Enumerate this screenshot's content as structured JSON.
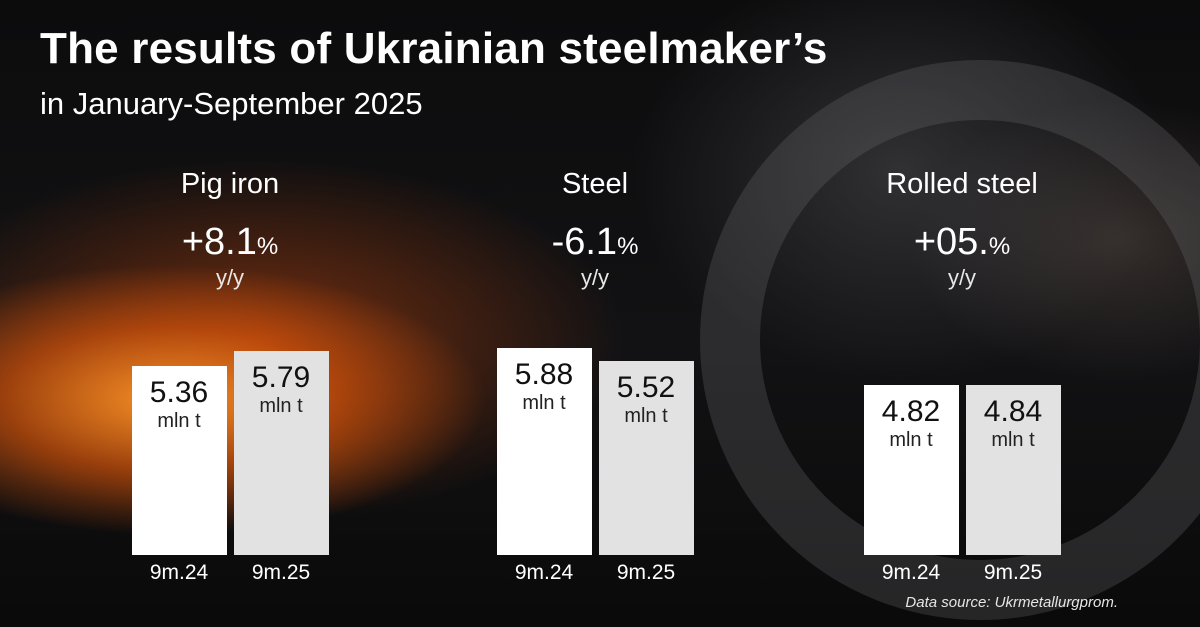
{
  "title": "The results of Ukrainian steelmaker’s",
  "subtitle": "in January-September 2025",
  "source": "Data source: Ukrmetallurgprom.",
  "chart_data": {
    "type": "bar",
    "unit": "mln t",
    "categories": [
      "9m.24",
      "9m.25"
    ],
    "colors": {
      "prev": "#ffffff",
      "curr": "#e2e2e2"
    },
    "groups": [
      {
        "name": "Pig iron",
        "change": "+8.1",
        "change_unit": "%",
        "yy": "y/y",
        "values": [
          5.36,
          5.79
        ],
        "value_labels": [
          "5.36",
          "5.79"
        ]
      },
      {
        "name": "Steel",
        "change": "-6.1",
        "change_unit": "%",
        "yy": "y/y",
        "values": [
          5.88,
          5.52
        ],
        "value_labels": [
          "5.88",
          "5.52"
        ]
      },
      {
        "name": "Rolled steel",
        "change": "+05.",
        "change_unit": "%",
        "yy": "y/y",
        "values": [
          4.82,
          4.84
        ],
        "value_labels": [
          "4.82",
          "4.84"
        ]
      }
    ]
  }
}
